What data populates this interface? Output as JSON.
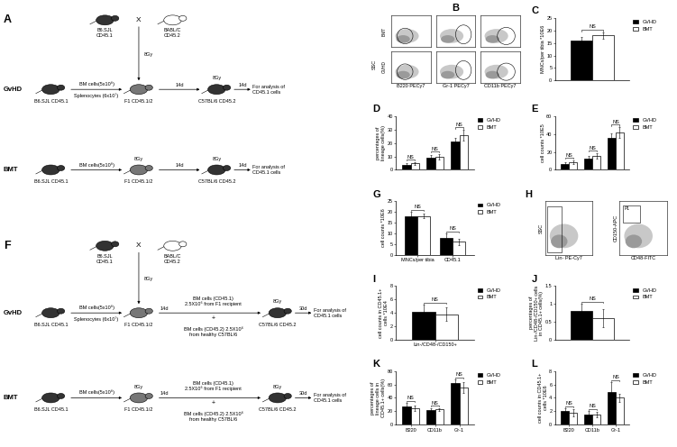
{
  "diagrams": [
    {
      "panel": "A",
      "cross": {
        "left": "B6.SJL\nCD45.1",
        "symbol": "X",
        "right": "BABL/C\nCD45.2",
        "dose": "8Gy"
      },
      "rows": [
        {
          "label": "GvHD",
          "donor": "B6.SJL CD45.1",
          "transfer": [
            "BM cells(5x10⁶)",
            "Splenocytes (6x10⁷)"
          ],
          "recipient": "F1 CD45.1/2",
          "interval": "14d",
          "host": "C57BL/6 CD45.2",
          "host_dose": "8Gy",
          "final_interval": "14d",
          "end": "For analysis of\nCD45.1 cells"
        },
        {
          "label": "BMT",
          "donor": "B6.SJL CD45.1",
          "transfer": [
            "BM cells(5x10⁶)"
          ],
          "recipient": "F1 CD45.1/2",
          "recipient_dose": "8Gy",
          "interval": "14d",
          "host": "C57BL/6 CD45.2",
          "host_dose": "8Gy",
          "final_interval": "14d",
          "end": "For analysis of\nCD45.1 cells"
        }
      ]
    },
    {
      "panel": "F",
      "cross": {
        "left": "B6.SJL\nCD45.1",
        "symbol": "X",
        "right": "BABL/C\nCD45.2",
        "dose": "8Gy"
      },
      "rows": [
        {
          "label": "GvHD",
          "donor": "B6.SJL CD45.1",
          "transfer": [
            "BM cells(5x10⁶)",
            "Splenocytes (6x10⁷)"
          ],
          "recipient": "F1 CD45.1/2",
          "interval": "14d",
          "second": [
            "BM cells (CD45.1)\n2.5X10⁶ from F1 recipient",
            "+",
            "BM cells (CD45.2) 2.5X10⁶\nfrom healthy C57BL/6"
          ],
          "host": "C57BL/6 CD45.2",
          "host_dose": "8Gy",
          "final_interval": "30d",
          "end": "For analysis of\nCD45.1 cells"
        },
        {
          "label": "BMT",
          "donor": "B6.SJL CD45.1",
          "transfer": [
            "BM cells(5x10⁶)"
          ],
          "recipient": "F1 CD45.1/2",
          "recipient_dose": "8Gy",
          "interval": "14d",
          "second": [
            "BM cells (CD45.1)\n2.5X10⁶ from F1 recipient",
            "+",
            "BM cells (CD45.2) 2.5X10⁶\nfrom healthy C57BL/6"
          ],
          "host": "C57BL/6 CD45.2",
          "host_dose": "8Gy",
          "final_interval": "30d",
          "end": "For analysis of\nCD45.1 cells"
        }
      ]
    }
  ],
  "flow_panels": [
    {
      "panel": "B",
      "ylabel": "SSC",
      "row_labels": [
        "BMT",
        "GVHD"
      ],
      "xlabels": [
        "B220 PECy7",
        "Gr-1 PECy7",
        "CD11b PECy7"
      ]
    },
    {
      "panel": "H",
      "plots": [
        {
          "xlabel": "Lin- PE-Cy7",
          "ylabel": "SSC"
        },
        {
          "xlabel": "CD48-FITC",
          "ylabel": "CD150-APC",
          "gate": "P1"
        }
      ]
    }
  ],
  "chart_data": [
    {
      "panel": "C",
      "type": "bar",
      "ylabel": "MNCs/per tibia *10E6",
      "categories": [
        null
      ],
      "series": [
        {
          "name": "GVHD",
          "color": "#000000",
          "values": [
            16
          ],
          "errors": [
            1.5
          ]
        },
        {
          "name": "BMT",
          "color": "#ffffff",
          "values": [
            18
          ],
          "errors": [
            1.2
          ]
        }
      ],
      "significance": [
        "NS"
      ],
      "ylim": [
        0,
        25
      ],
      "yticks": [
        0,
        5,
        10,
        15,
        20,
        25
      ],
      "legend": "upper right"
    },
    {
      "panel": "D",
      "type": "bar",
      "ylabel": "percentages of\nlineage cells(%)",
      "categories": [
        null,
        null,
        null
      ],
      "series": [
        {
          "name": "GVHD",
          "color": "#000000",
          "values": [
            4,
            9,
            21
          ],
          "errors": [
            1,
            2,
            3
          ]
        },
        {
          "name": "BMT",
          "color": "#ffffff",
          "values": [
            5,
            10,
            26
          ],
          "errors": [
            1,
            2,
            4
          ]
        }
      ],
      "significance": [
        "NS",
        "NS",
        "NS"
      ],
      "ylim": [
        0,
        40
      ],
      "yticks": [
        0,
        10,
        20,
        30,
        40
      ],
      "legend": "upper right"
    },
    {
      "panel": "E",
      "type": "bar",
      "ylabel": "cell counts *10E5",
      "categories": [
        null,
        null,
        null
      ],
      "series": [
        {
          "name": "GVHD",
          "color": "#000000",
          "values": [
            7,
            13,
            36
          ],
          "errors": [
            1.5,
            3,
            5
          ]
        },
        {
          "name": "BMT",
          "color": "#ffffff",
          "values": [
            9,
            16,
            42
          ],
          "errors": [
            2,
            3,
            6
          ]
        }
      ],
      "significance": [
        "NS",
        "NS",
        "NS"
      ],
      "ylim": [
        0,
        60
      ],
      "yticks": [
        0,
        20,
        40,
        60
      ],
      "legend": "upper right"
    },
    {
      "panel": "G",
      "type": "bar",
      "ylabel": "cell counts *10E6",
      "categories": [
        "MNCs/per tibia",
        "CD45.1"
      ],
      "series": [
        {
          "name": "GVHD",
          "color": "#000000",
          "values": [
            18,
            8
          ],
          "errors": [
            2,
            2
          ]
        },
        {
          "name": "BMT",
          "color": "#ffffff",
          "values": [
            18,
            6
          ],
          "errors": [
            1,
            1.5
          ]
        }
      ],
      "significance": [
        "NS",
        "NS"
      ],
      "ylim": [
        0,
        25
      ],
      "yticks": [
        0,
        5,
        10,
        15,
        20,
        25
      ],
      "legend": "upper right"
    },
    {
      "panel": "I",
      "type": "bar",
      "ylabel": "cell counts in CD45.1+\ncells *10E4",
      "categories": [
        "Lin-/CD48-/CD150+"
      ],
      "series": [
        {
          "name": "GVHD",
          "color": "#000000",
          "values": [
            4.2
          ],
          "errors": [
            1
          ]
        },
        {
          "name": "BMT",
          "color": "#ffffff",
          "values": [
            3.8
          ],
          "errors": [
            1
          ]
        }
      ],
      "significance": [
        "NS"
      ],
      "ylim": [
        0,
        8
      ],
      "yticks": [
        0,
        2,
        4,
        6,
        8
      ],
      "legend": "upper right"
    },
    {
      "panel": "J",
      "type": "bar",
      "ylabel": "percentages of\nLin-/CD48-/CD150+ cells\nin CD45.1+ cells(%)",
      "categories": [
        null
      ],
      "series": [
        {
          "name": "GVHD",
          "color": "#000000",
          "values": [
            0.8
          ],
          "errors": [
            0.2
          ]
        },
        {
          "name": "BMT",
          "color": "#ffffff",
          "values": [
            0.6
          ],
          "errors": [
            0.25
          ]
        }
      ],
      "significance": [
        "NS"
      ],
      "ylim": [
        0,
        1.5
      ],
      "yticks": [
        0,
        0.5,
        1,
        1.5
      ],
      "legend": "upper right"
    },
    {
      "panel": "K",
      "type": "bar",
      "ylabel": "percentages of\nlineage cells in\nCD45.1+ cells(%)",
      "categories": [
        "B220",
        "CD11b",
        "Gr-1"
      ],
      "series": [
        {
          "name": "GVHD",
          "color": "#000000",
          "values": [
            27,
            22,
            62
          ],
          "errors": [
            5,
            2,
            5
          ]
        },
        {
          "name": "BMT",
          "color": "#ffffff",
          "values": [
            24,
            23,
            55
          ],
          "errors": [
            4,
            2,
            8
          ]
        }
      ],
      "significance": [
        "NS",
        "NS",
        "NS"
      ],
      "ylim": [
        0,
        80
      ],
      "yticks": [
        0,
        20,
        40,
        60,
        80
      ],
      "legend": "upper right"
    },
    {
      "panel": "L",
      "type": "bar",
      "ylabel": "cell counts in CD45.1+\ncells *10E6",
      "categories": [
        "B220",
        "CD11b",
        "Gr-1"
      ],
      "series": [
        {
          "name": "GVHD",
          "color": "#000000",
          "values": [
            2,
            1.5,
            4.8
          ],
          "errors": [
            0.4,
            0.5,
            1.5
          ]
        },
        {
          "name": "BMT",
          "color": "#ffffff",
          "values": [
            1.8,
            1.5,
            4
          ],
          "errors": [
            0.5,
            0.4,
            0.6
          ]
        }
      ],
      "significance": [
        "NS",
        "NS",
        "NS"
      ],
      "ylim": [
        0,
        8
      ],
      "yticks": [
        0,
        2,
        4,
        6,
        8
      ],
      "legend": "upper right"
    }
  ]
}
